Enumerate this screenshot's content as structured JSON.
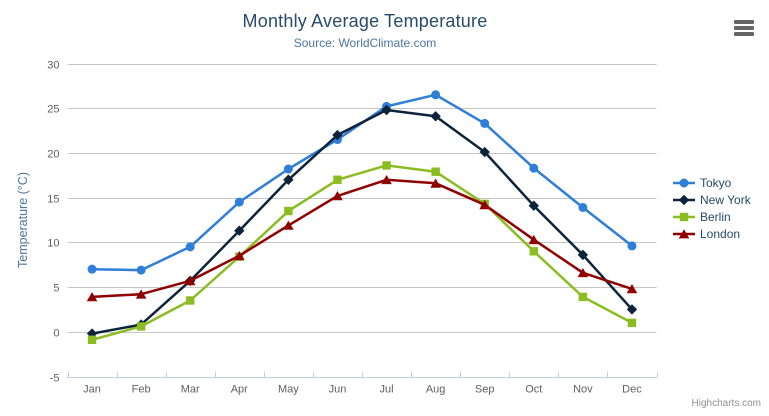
{
  "chart": {
    "title": "Monthly Average Temperature",
    "subtitle": "Source: WorldClimate.com",
    "credits": "Highcharts.com",
    "menu_icon": "hamburger-icon"
  },
  "colors": {
    "title": "#274b6d",
    "subtitle": "#4d759e",
    "axis_title": "#4d759e",
    "tick_labels": "#606060",
    "legend_text": "#274b6d",
    "gridline": "#c6c6c6",
    "axis_line": "#c0d0e0",
    "credits": "#909090",
    "menu_icon": "#666666"
  },
  "chart_data": {
    "type": "line",
    "title": "Monthly Average Temperature",
    "subtitle": "Source: WorldClimate.com",
    "categories": [
      "Jan",
      "Feb",
      "Mar",
      "Apr",
      "May",
      "Jun",
      "Jul",
      "Aug",
      "Sep",
      "Oct",
      "Nov",
      "Dec"
    ],
    "series": [
      {
        "name": "Tokyo",
        "color": "#2f7ed8",
        "marker": "circle",
        "values": [
          7.0,
          6.9,
          9.5,
          14.5,
          18.2,
          21.5,
          25.2,
          26.5,
          23.3,
          18.3,
          13.9,
          9.6
        ]
      },
      {
        "name": "New York",
        "color": "#0d233a",
        "marker": "diamond",
        "values": [
          -0.2,
          0.8,
          5.7,
          11.3,
          17.0,
          22.0,
          24.8,
          24.1,
          20.1,
          14.1,
          8.6,
          2.5
        ]
      },
      {
        "name": "Berlin",
        "color": "#8bbc21",
        "marker": "square",
        "values": [
          -0.9,
          0.6,
          3.5,
          8.4,
          13.5,
          17.0,
          18.6,
          17.9,
          14.3,
          9.0,
          3.9,
          1.0
        ]
      },
      {
        "name": "London",
        "color": "#910000",
        "marker": "triangle",
        "values": [
          3.9,
          4.2,
          5.7,
          8.5,
          11.9,
          15.2,
          17.0,
          16.6,
          14.2,
          10.3,
          6.6,
          4.8
        ]
      }
    ],
    "xlabel": "",
    "ylabel": "Temperature (°C)",
    "ylim": [
      -5,
      30
    ],
    "ytick_step": 5,
    "grid": true,
    "legend_position": "right-middle"
  }
}
